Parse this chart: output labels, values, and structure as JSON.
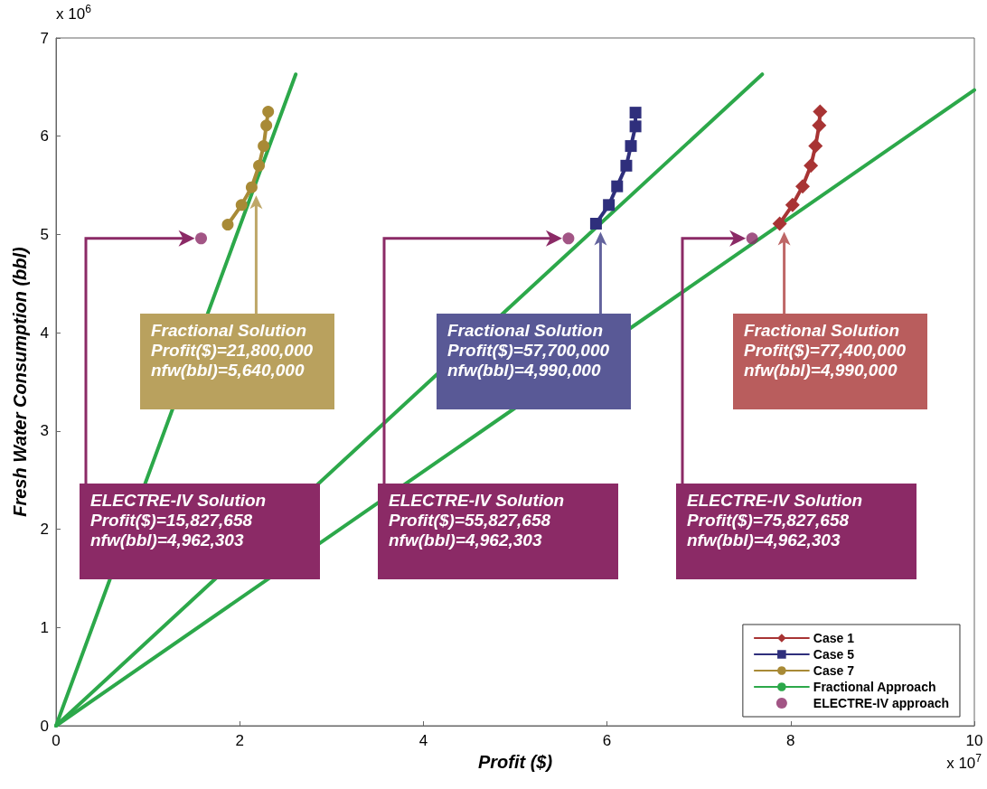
{
  "chart_data": {
    "type": "line",
    "xlabel": "Profit ($)",
    "ylabel": "Fresh Water Consumption (bbl)",
    "xlim": [
      0,
      10
    ],
    "xticks": [
      0,
      2,
      4,
      6,
      8,
      10
    ],
    "ylim": [
      0,
      7
    ],
    "yticks": [
      0,
      1,
      2,
      3,
      4,
      5,
      6,
      7
    ],
    "legend": "bottom right",
    "series": [
      {
        "name": "Case 1",
        "color": "#a83434",
        "marker": "diamond",
        "x": [
          7.88,
          8.02,
          8.13,
          8.22,
          8.27,
          8.31,
          8.32
        ],
        "values": [
          5.11,
          5.3,
          5.49,
          5.7,
          5.9,
          6.11,
          6.25
        ]
      },
      {
        "name": "Case 5",
        "color": "#2f2f7c",
        "marker": "square",
        "x": [
          5.88,
          6.02,
          6.11,
          6.21,
          6.26,
          6.31,
          6.31
        ],
        "values": [
          5.11,
          5.3,
          5.49,
          5.7,
          5.9,
          6.1,
          6.24
        ]
      },
      {
        "name": "Case 7",
        "color": "#a88a36",
        "marker": "circle",
        "x": [
          1.87,
          2.02,
          2.13,
          2.21,
          2.26,
          2.29,
          2.31
        ],
        "values": [
          5.1,
          5.3,
          5.48,
          5.7,
          5.9,
          6.11,
          6.25
        ]
      },
      {
        "name": "Fractional Approach",
        "color": "#2ca84a",
        "marker": "none",
        "x": [
          0,
          2.61
        ],
        "values": [
          0,
          6.63
        ]
      },
      {
        "color": "#2ca84a",
        "marker": "none",
        "x": [
          0,
          7.69
        ],
        "values": [
          0,
          6.63
        ]
      },
      {
        "color": "#2ca84a",
        "marker": "none",
        "x": [
          0,
          10
        ],
        "values": [
          0,
          6.47
        ]
      },
      {
        "name": "ELECTRE-IV approach",
        "type": "scatter",
        "color": "#8b2a66",
        "marker": "circle",
        "x": [
          1.58,
          5.58,
          7.58
        ],
        "values": [
          4.96,
          4.96,
          4.96
        ]
      }
    ],
    "annotations": [
      "x 10$^{6}$",
      "x 10$^{7}$",
      "Fractional Solution\nProfit($)=21,800,000\nnfw(bbl)=5,640,000",
      "Fractional Solution\nProfit($)=57,700,000\nnfw(bbl)=4,990,000",
      "Fractional Solution\nProfit($)=77,400,000\nnfw(bbl)=4,990,000",
      "ELECTRE-IV Solution\nProfit($)=15,827,658\nnfw(bbl)=4,962,303",
      "ELECTRE-IV Solution\nProfit($)=55,827,658\nnfw(bbl)=4,962,303",
      "ELECTRE-IV Solution\nProfit($)=75,827,658\nnfw(bbl)=4,962,303"
    ]
  }
}
